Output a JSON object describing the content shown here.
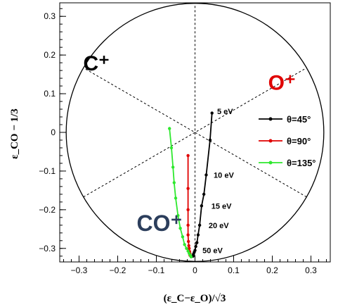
{
  "chart_data": {
    "type": "line",
    "title": "",
    "xlabel": "(ε_C−ε_O)/√3",
    "ylabel": "ε_CO − 1/3",
    "xlim": [
      -0.35,
      0.35
    ],
    "ylim": [
      -0.335,
      0.335
    ],
    "xticks": [
      -0.3,
      -0.2,
      -0.1,
      0,
      0.1,
      0.2,
      0.3
    ],
    "xtick_labels": [
      "−0.3",
      "−0.2",
      "−0.1",
      "0",
      "0.1",
      "0.2",
      "0.3"
    ],
    "yticks": [
      -0.3,
      -0.2,
      -0.1,
      0,
      0.1,
      0.2,
      0.3
    ],
    "ytick_labels": [
      "−0.3",
      "−0.2",
      "−0.1",
      "0",
      "0.1",
      "0.2",
      "0.3"
    ],
    "grid": false,
    "legend_position": "right",
    "boundary_circle": {
      "center": [
        0,
        0
      ],
      "radius": 0.3333
    },
    "divider_line_angles_deg": [
      90,
      30,
      150
    ],
    "region_labels": [
      {
        "text": "C⁺",
        "x": -0.255,
        "y": 0.16,
        "color": "#000000"
      },
      {
        "text": "O⁺",
        "x": 0.225,
        "y": 0.11,
        "color": "#e00000"
      },
      {
        "text": "CO⁺",
        "x": -0.092,
        "y": -0.255,
        "color": "#2c3e5c"
      }
    ],
    "series": [
      {
        "name": "θ=45°",
        "color": "#000000",
        "x": [
          0.044,
          0.039,
          0.029,
          0.023,
          0.017,
          0.012,
          0.008,
          0.005,
          0.002,
          0.0,
          -0.002,
          -0.004,
          -0.005
        ],
        "y": [
          0.05,
          -0.02,
          -0.11,
          -0.16,
          -0.19,
          -0.24,
          -0.265,
          -0.285,
          -0.295,
          -0.305,
          -0.31,
          -0.315,
          -0.32
        ]
      },
      {
        "name": "θ=90°",
        "color": "#e00000",
        "x": [
          -0.018,
          -0.018,
          -0.018,
          -0.018,
          -0.018,
          -0.017,
          -0.016,
          -0.015,
          -0.014,
          -0.013,
          -0.013
        ],
        "y": [
          -0.06,
          -0.145,
          -0.2,
          -0.24,
          -0.265,
          -0.282,
          -0.293,
          -0.3,
          -0.308,
          -0.313,
          -0.318
        ]
      },
      {
        "name": "θ=135°",
        "color": "#2ee82e",
        "x": [
          -0.066,
          -0.061,
          -0.057,
          -0.054,
          -0.05,
          -0.044,
          -0.038,
          -0.032,
          -0.027,
          -0.022,
          -0.018,
          -0.015,
          -0.012,
          -0.01
        ],
        "y": [
          0.01,
          -0.04,
          -0.09,
          -0.13,
          -0.17,
          -0.215,
          -0.248,
          -0.27,
          -0.29,
          -0.3,
          -0.307,
          -0.313,
          -0.318,
          -0.322
        ]
      }
    ],
    "annotations": [
      {
        "text": "5 eV",
        "x": 0.05,
        "y": 0.055
      },
      {
        "text": "10 eV",
        "x": 0.041,
        "y": -0.11
      },
      {
        "text": "15 eV",
        "x": 0.035,
        "y": -0.19
      },
      {
        "text": "20 eV",
        "x": 0.028,
        "y": -0.24
      },
      {
        "text": "50 eV",
        "x": 0.012,
        "y": -0.305
      }
    ]
  }
}
